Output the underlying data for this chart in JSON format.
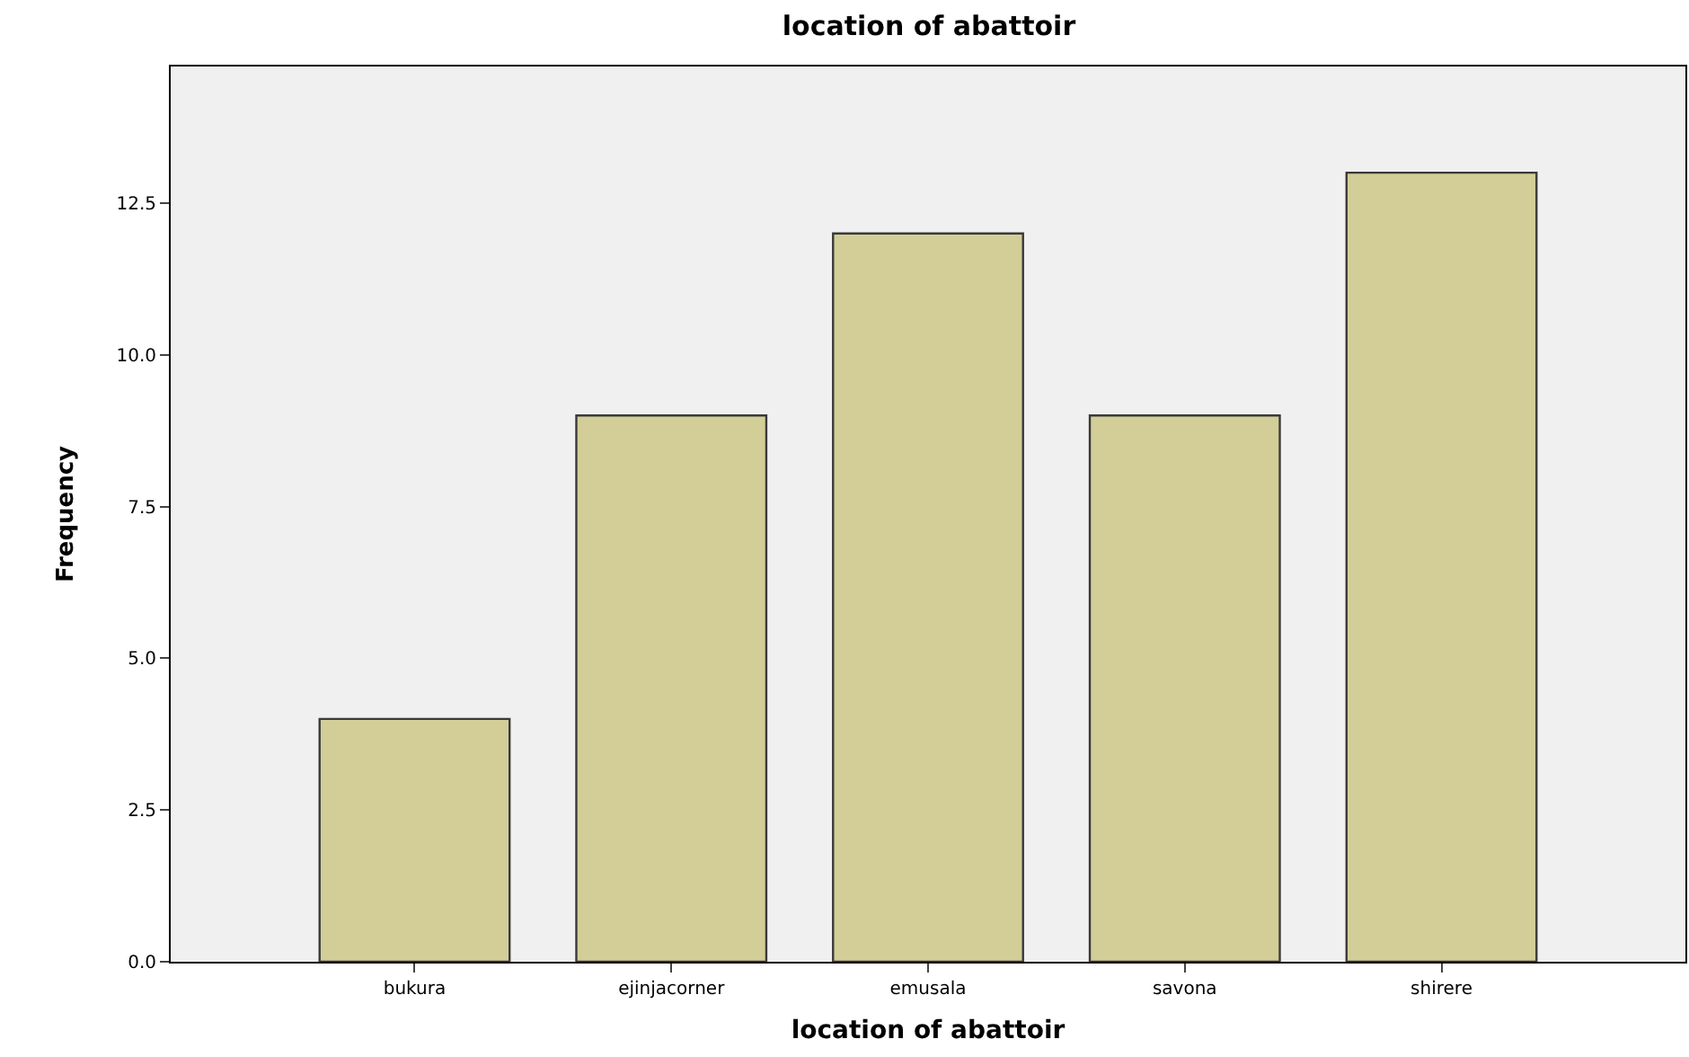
{
  "chart_data": {
    "type": "bar",
    "title": "location of abattoir",
    "xlabel": "location of abattoir",
    "ylabel": "Frequency",
    "categories": [
      "bukura",
      "ejinjacorner",
      "emusala",
      "savona",
      "shirere"
    ],
    "values": [
      4,
      9,
      12,
      9,
      13
    ],
    "color": "#d3ce97",
    "ylim": [
      0,
      14.75
    ],
    "yticks": [
      {
        "value": 0,
        "label": "0.0"
      },
      {
        "value": 2.5,
        "label": "2.5"
      },
      {
        "value": 5,
        "label": "5.0"
      },
      {
        "value": 7.5,
        "label": "7.5"
      },
      {
        "value": 10,
        "label": "10.0"
      },
      {
        "value": 12.5,
        "label": "12.5"
      }
    ],
    "grid": false,
    "legend": false
  }
}
